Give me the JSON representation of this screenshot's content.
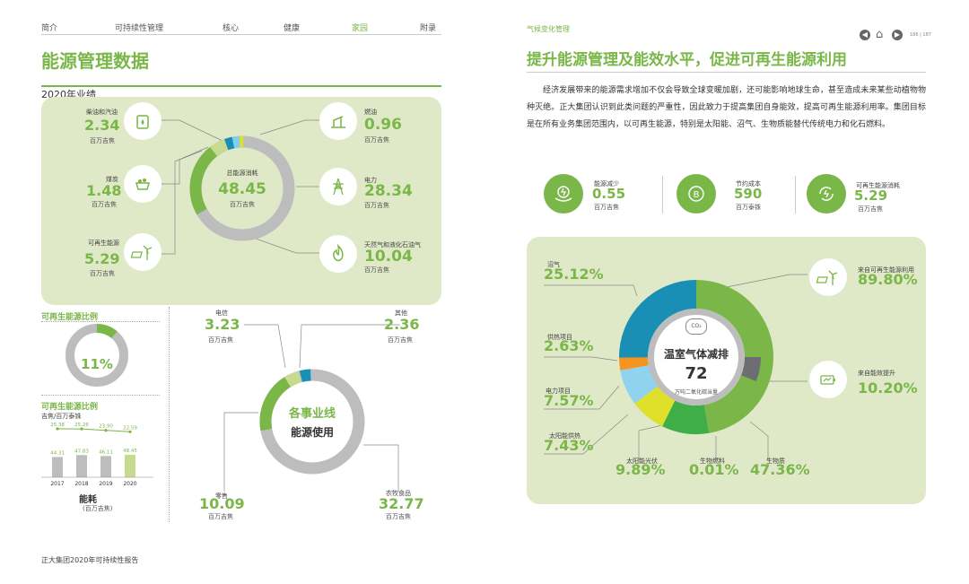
{
  "nav": [
    "简介",
    "可持续性管理",
    "核心",
    "健康",
    "家园",
    "附录"
  ],
  "left_title": "能源管理数据",
  "section_2020": "2020年业绩",
  "energy": {
    "center_label": "总能源消耗",
    "center_value": "48.45",
    "center_unit": "百万吉焦",
    "items": [
      {
        "label": "柴油和汽油",
        "value": "2.34",
        "unit": "百万吉焦",
        "icon": "fuel-can-icon"
      },
      {
        "label": "煤炭",
        "value": "1.48",
        "unit": "百万吉焦",
        "icon": "coal-cart-icon"
      },
      {
        "label": "可再生能源",
        "value": "5.29",
        "unit": "百万吉焦",
        "icon": "solar-wind-icon"
      },
      {
        "label": "燃油",
        "value": "0.96",
        "unit": "百万吉焦",
        "icon": "oil-pump-icon"
      },
      {
        "label": "电力",
        "value": "28.34",
        "unit": "百万吉焦",
        "icon": "power-tower-icon"
      },
      {
        "label": "天然气和液化石油气",
        "value": "10.04",
        "unit": "百万吉焦",
        "icon": "flame-icon"
      }
    ]
  },
  "renewable_ratio": {
    "title": "可再生能源比例",
    "value": "11%"
  },
  "renewable_ratio2": {
    "title": "可再生能源比例",
    "line_label": "吉焦/百万泰铢",
    "line_values": [
      "25.38",
      "25.26",
      "23.90",
      "22.59"
    ],
    "bar_values": [
      "44.31",
      "47.83",
      "46.11",
      "48.45"
    ],
    "years": [
      "2017",
      "2018",
      "2019",
      "2020"
    ],
    "footer": "能耗",
    "footer_unit": "(百万吉焦)"
  },
  "business": {
    "center1": "各事业线",
    "center2": "能源使用",
    "items": [
      {
        "label": "电信",
        "value": "3.23",
        "unit": "百万吉焦"
      },
      {
        "label": "其他",
        "value": "2.36",
        "unit": "百万吉焦"
      },
      {
        "label": "零售",
        "value": "10.09",
        "unit": "百万吉焦"
      },
      {
        "label": "农牧食品",
        "value": "32.77",
        "unit": "百万吉焦"
      }
    ]
  },
  "footer_left": "正大集团2020年可持续性报告",
  "right_section": "气候变化管理",
  "page_num": "186 | 187",
  "right_title": "提升能源管理及能效水平，促进可再生能源利用",
  "paragraph": "经济发展带来的能源需求增加不仅会导致全球变暖加剧，还可能影响地球生命，甚至造成未来某些动植物物种灭绝。正大集团认识到此类问题的严重性，因此致力于提高集团自身能效，提高可再生能源利用率。集团目标是在所有业务集团范围内，以可再生能源，特别是太阳能、沼气、生物质能替代传统电力和化石燃料。",
  "kpis": [
    {
      "label": "能源减少",
      "value": "0.55",
      "unit": "百万吉焦",
      "icon": "energy-hand-icon"
    },
    {
      "label": "节约成本",
      "value": "590",
      "unit": "百万泰铢",
      "icon": "coin-baht-icon"
    },
    {
      "label": "可再生能源消耗",
      "value": "5.29",
      "unit": "百万吉焦",
      "icon": "renew-cycle-icon"
    }
  ],
  "ghg": {
    "co2": "CO₂",
    "center_title": "温室气体减排",
    "center_value": "72",
    "center_unit": "万吨二氧化碳当量",
    "items": [
      {
        "label": "沼气",
        "value": "25.12%"
      },
      {
        "label": "供热项目",
        "value": "2.63%"
      },
      {
        "label": "电力项目",
        "value": "7.57%"
      },
      {
        "label": "太阳能供热",
        "value": "7.43%"
      },
      {
        "label": "太阳能光伏",
        "value": "9.89%"
      },
      {
        "label": "生物燃料",
        "value": "0.01%"
      },
      {
        "label": "生物质",
        "value": "47.36%"
      },
      {
        "label": "来自可再生能源利用",
        "value": "89.80%"
      },
      {
        "label": "来自能效提升",
        "value": "10.20%"
      }
    ]
  },
  "colors": {
    "green": "#7ab648",
    "light_green": "#c6db8f",
    "panel": "#dfe9c8",
    "gray": "#bdbdbd",
    "blue": "#1a8fb5",
    "orange": "#f7941d",
    "yellow": "#dfe02a"
  }
}
